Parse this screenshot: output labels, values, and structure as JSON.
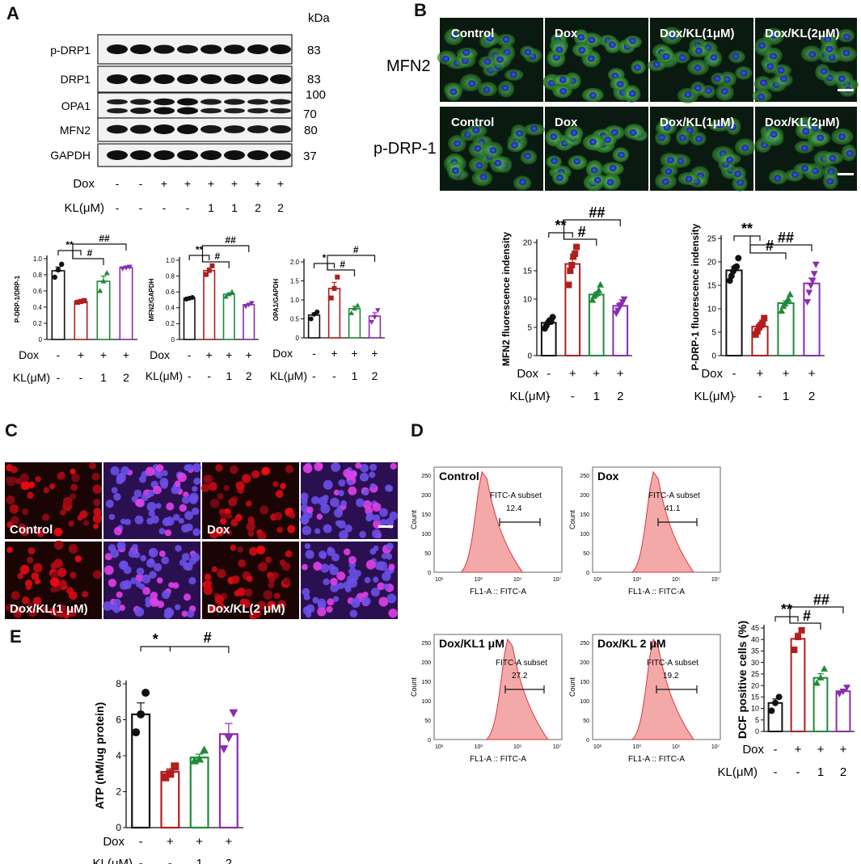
{
  "panels": {
    "A": {
      "letter": "A",
      "kda_label": "kDa",
      "blots": [
        {
          "name": "p-DRP1",
          "kda": "83"
        },
        {
          "name": "DRP1",
          "kda": "83"
        },
        {
          "name": "OPA1",
          "kda_top": "100",
          "kda_bottom": "70"
        },
        {
          "name": "MFN2",
          "kda": "80"
        },
        {
          "name": "GAPDH",
          "kda": "37"
        }
      ],
      "treat_rows": [
        {
          "label": "Dox",
          "values": [
            "-",
            "-",
            "+",
            "+",
            "+",
            "+",
            "+",
            "+"
          ]
        },
        {
          "label": "KL(μM)",
          "values": [
            "-",
            "-",
            "-",
            "-",
            "1",
            "1",
            "2",
            "2"
          ]
        }
      ]
    },
    "B": {
      "letter": "B",
      "row_labels": [
        "MFN2",
        "p-DRP-1"
      ],
      "col_labels": [
        "Control",
        "Dox",
        "Dox/KL(1μM)",
        "Dox/KL(2μM)"
      ]
    },
    "C": {
      "letter": "C",
      "labels": [
        "Control",
        "Dox",
        "Dox/KL(1 μM)",
        "Dox/KL(2 μM)"
      ]
    },
    "D": {
      "letter": "D",
      "histograms": [
        {
          "title": "Control",
          "gate_label": "FITC-A subset",
          "value": "12.4",
          "xlabel": "FL1-A :: FITC-A",
          "ylabel": "Count"
        },
        {
          "title": "Dox",
          "gate_label": "FITC-A subset",
          "value": "41.1",
          "xlabel": "FL1-A :: FITC-A",
          "ylabel": "Count"
        },
        {
          "title": "Dox/KL1 μM",
          "gate_label": "FITC-A subset",
          "value": "27.2",
          "xlabel": "FL1-A :: FITC-A",
          "ylabel": "Count"
        },
        {
          "title": "Dox/KL 2 μM",
          "gate_label": "FITC-A subset",
          "value": "19.2",
          "xlabel": "FL1-A :: FITC-A",
          "ylabel": "Count"
        }
      ],
      "yticks": [
        "0",
        "50",
        "100",
        "150",
        "200",
        "250"
      ],
      "xticks": [
        "10¹",
        "10³",
        "10⁵",
        "10⁷"
      ]
    },
    "E": {
      "letter": "E"
    }
  },
  "treat_labels": {
    "dox": "Dox",
    "kl": "KL(μM)",
    "dox_row": [
      "-",
      "+",
      "+",
      "+"
    ],
    "kl_row": [
      "-",
      "-",
      "1",
      "2"
    ]
  },
  "chart_data": [
    {
      "id": "a1",
      "type": "bar",
      "ylabel": "P-DRP-1/DRP-1",
      "ylim": [
        0,
        1
      ],
      "yticks": [
        "0",
        "0.2",
        "0.4",
        "0.6",
        "0.8",
        "1.0"
      ],
      "categories": [
        "Control",
        "Dox",
        "Dox/KL1",
        "Dox/KL2"
      ],
      "values": [
        0.85,
        0.47,
        0.72,
        0.89
      ],
      "points": [
        [
          0.77,
          0.86,
          0.93
        ],
        [
          0.46,
          0.47,
          0.48
        ],
        [
          0.6,
          0.72,
          0.82
        ],
        [
          0.88,
          0.89,
          0.9
        ]
      ],
      "annotations": [
        "**",
        "#",
        "##"
      ]
    },
    {
      "id": "a2",
      "type": "bar",
      "ylabel": "MFN2/GAPDH",
      "ylim": [
        0,
        1.0
      ],
      "yticks": [
        "0",
        "0.2",
        "0.4",
        "0.6",
        "0.8",
        "1.0"
      ],
      "categories": [
        "Control",
        "Dox",
        "Dox/KL1",
        "Dox/KL2"
      ],
      "values": [
        0.52,
        0.87,
        0.57,
        0.44
      ],
      "points": [
        [
          0.51,
          0.52,
          0.53
        ],
        [
          0.82,
          0.87,
          0.93
        ],
        [
          0.54,
          0.57,
          0.6
        ],
        [
          0.42,
          0.44,
          0.46
        ]
      ],
      "annotations": [
        "**",
        "#",
        "##"
      ]
    },
    {
      "id": "a3",
      "type": "bar",
      "ylabel": "OPA1/GAPDH",
      "ylim": [
        0,
        2
      ],
      "yticks": [
        "0",
        "0.5",
        "1.0",
        "1.5",
        "2.0"
      ],
      "categories": [
        "Control",
        "Dox",
        "Dox/KL1",
        "Dox/KL2"
      ],
      "values": [
        0.6,
        1.3,
        0.77,
        0.57
      ],
      "points": [
        [
          0.5,
          0.62,
          0.68
        ],
        [
          1.05,
          1.3,
          1.6
        ],
        [
          0.65,
          0.77,
          0.85
        ],
        [
          0.42,
          0.55,
          0.73
        ]
      ],
      "annotations": [
        "*",
        "#",
        "#"
      ]
    },
    {
      "id": "b1",
      "type": "bar",
      "ylabel": "MFN2 fluorescence indensity",
      "ylim": [
        0,
        20
      ],
      "yticks": [
        "0",
        "5",
        "10",
        "15",
        "20"
      ],
      "categories": [
        "Control",
        "Dox",
        "Dox/KL1",
        "Dox/KL2"
      ],
      "values": [
        5.8,
        16.2,
        10.8,
        8.8
      ],
      "points": [
        [
          4.8,
          5.3,
          5.8,
          6.2,
          6.0,
          6.8
        ],
        [
          12.5,
          15.0,
          16.0,
          17.5,
          18.0,
          19.2
        ],
        [
          9.8,
          10.5,
          10.8,
          11.0,
          11.5,
          12.5
        ],
        [
          7.5,
          8.0,
          8.8,
          9.0,
          9.5,
          10.0
        ]
      ],
      "annotations": [
        "**",
        "#",
        "##"
      ]
    },
    {
      "id": "b2",
      "type": "bar",
      "ylabel": "P-DRP-1 fluorescence indensity",
      "ylim": [
        0,
        25
      ],
      "yticks": [
        "0",
        "5",
        "10",
        "15",
        "20",
        "25"
      ],
      "categories": [
        "Control",
        "Dox",
        "Dox/KL1",
        "Dox/KL2"
      ],
      "values": [
        18.2,
        6.2,
        11.2,
        15.4
      ],
      "points": [
        [
          16.0,
          17.0,
          18.0,
          18.8,
          19.0,
          20.8
        ],
        [
          4.5,
          5.2,
          6.0,
          6.5,
          7.0,
          8.0
        ],
        [
          9.5,
          10.5,
          11.0,
          11.5,
          12.0,
          13.0
        ],
        [
          11.5,
          13.5,
          15.0,
          16.0,
          17.5,
          19.5
        ]
      ],
      "annotations": [
        "**",
        "#",
        "##"
      ]
    },
    {
      "id": "d",
      "type": "bar",
      "ylabel": "DCF positive cells (%)",
      "ylim": [
        0,
        45
      ],
      "yticks": [
        "0",
        "5",
        "10",
        "15",
        "20",
        "25",
        "30",
        "35",
        "40",
        "45"
      ],
      "categories": [
        "Control",
        "Dox",
        "Dox/KL1",
        "Dox/KL2"
      ],
      "values": [
        12.4,
        40.3,
        23.3,
        17.5
      ],
      "points": [
        [
          9.0,
          12.4,
          15.0
        ],
        [
          35.5,
          41.1,
          44.0
        ],
        [
          21.0,
          23.3,
          27.2
        ],
        [
          16.5,
          17.5,
          19.2
        ]
      ],
      "annotations": [
        "**",
        "#",
        "##"
      ]
    },
    {
      "id": "e",
      "type": "bar",
      "ylabel": "ATP (nM/ug protein)",
      "ylim": [
        0,
        8
      ],
      "yticks": [
        "0",
        "2",
        "4",
        "6",
        "8"
      ],
      "categories": [
        "Control",
        "Dox",
        "Dox/KL1",
        "Dox/KL2"
      ],
      "values": [
        6.3,
        3.1,
        3.9,
        5.2
      ],
      "points": [
        [
          5.3,
          6.3,
          7.5
        ],
        [
          2.8,
          3.0,
          3.4
        ],
        [
          3.7,
          3.8,
          4.3
        ],
        [
          4.4,
          5.0,
          6.4
        ]
      ],
      "annotations": [
        "*",
        "#"
      ]
    }
  ]
}
